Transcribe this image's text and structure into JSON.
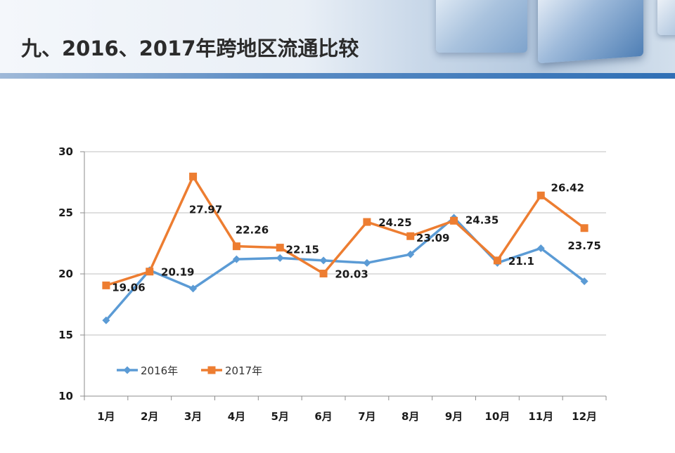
{
  "page": {
    "title": "九、2016、2017年跨地区流通比较"
  },
  "chart_data": {
    "type": "line",
    "title": "",
    "xlabel": "",
    "ylabel": "",
    "categories": [
      "1月",
      "2月",
      "3月",
      "4月",
      "5月",
      "6月",
      "7月",
      "8月",
      "9月",
      "10月",
      "11月",
      "12月"
    ],
    "ylim": [
      10,
      30
    ],
    "yticks": [
      10,
      15,
      20,
      25,
      30
    ],
    "grid": true,
    "legend_position": "bottom-left",
    "series": [
      {
        "name": "2016年",
        "color": "#5b9bd5",
        "marker": "diamond",
        "values": [
          16.2,
          20.3,
          18.8,
          21.2,
          21.3,
          21.1,
          20.9,
          21.6,
          24.6,
          20.9,
          22.1,
          19.4
        ],
        "labels": [
          null,
          null,
          null,
          null,
          null,
          null,
          null,
          null,
          null,
          null,
          null,
          null
        ]
      },
      {
        "name": "2017年",
        "color": "#ed7d31",
        "marker": "square",
        "values": [
          19.06,
          20.19,
          27.97,
          22.26,
          22.15,
          20.03,
          24.25,
          23.09,
          24.35,
          21.1,
          26.42,
          23.75
        ],
        "labels": [
          "19.06",
          "20.19",
          "27.97",
          "22.26",
          "22.15",
          "20.03",
          "24.25",
          "23.09",
          "24.35",
          "21.1",
          "26.42",
          "23.75"
        ]
      }
    ]
  }
}
